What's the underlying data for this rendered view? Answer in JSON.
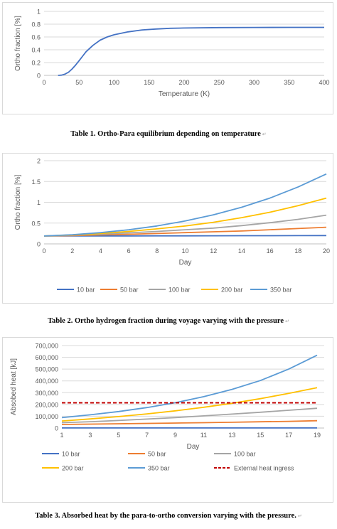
{
  "chart_data": [
    {
      "type": "line",
      "x": [
        20,
        25,
        30,
        35,
        40,
        45,
        50,
        55,
        60,
        70,
        80,
        90,
        100,
        120,
        140,
        160,
        180,
        200,
        250,
        300,
        350,
        400
      ],
      "series": [
        {
          "values": [
            0.0,
            0.003,
            0.02,
            0.05,
            0.1,
            0.16,
            0.23,
            0.3,
            0.37,
            0.47,
            0.55,
            0.6,
            0.635,
            0.68,
            0.71,
            0.725,
            0.735,
            0.74,
            0.747,
            0.749,
            0.75,
            0.75
          ],
          "color": "#4472C4"
        }
      ],
      "xlabel": "Temperature  (K)",
      "ylabel": "Ortho fraction [%]",
      "xlim": [
        0,
        400
      ],
      "ylim": [
        0,
        1
      ],
      "xticks": [
        "0",
        "50",
        "100",
        "150",
        "200",
        "250",
        "300",
        "350",
        "400"
      ],
      "yticks": [
        "0",
        "0.2",
        "0.4",
        "0.6",
        "0.8",
        "1"
      ],
      "grid": true
    },
    {
      "type": "line",
      "x": [
        0,
        2,
        4,
        6,
        8,
        10,
        12,
        14,
        16,
        18,
        20
      ],
      "series": [
        {
          "name": "10 bar",
          "color": "#4472C4",
          "values": [
            0.19,
            0.19,
            0.191,
            0.192,
            0.193,
            0.194,
            0.195,
            0.196,
            0.197,
            0.198,
            0.2
          ]
        },
        {
          "name": "50 bar",
          "color": "#ED7D31",
          "values": [
            0.19,
            0.2,
            0.215,
            0.23,
            0.25,
            0.27,
            0.29,
            0.31,
            0.34,
            0.37,
            0.4
          ]
        },
        {
          "name": "100 bar",
          "color": "#A5A5A5",
          "values": [
            0.19,
            0.21,
            0.235,
            0.265,
            0.3,
            0.34,
            0.38,
            0.44,
            0.51,
            0.59,
            0.69
          ]
        },
        {
          "name": "200 bar",
          "color": "#FFC000",
          "values": [
            0.19,
            0.215,
            0.25,
            0.3,
            0.36,
            0.43,
            0.52,
            0.63,
            0.76,
            0.92,
            1.1
          ]
        },
        {
          "name": "350 bar",
          "color": "#5B9BD5",
          "values": [
            0.19,
            0.22,
            0.27,
            0.34,
            0.43,
            0.55,
            0.7,
            0.88,
            1.1,
            1.37,
            1.68
          ]
        }
      ],
      "xlabel": "Day",
      "ylabel": "Ortho fraction [%]",
      "xlim": [
        0,
        20
      ],
      "ylim": [
        0,
        2
      ],
      "xticks": [
        "0",
        "2",
        "4",
        "6",
        "8",
        "10",
        "12",
        "14",
        "16",
        "18",
        "20"
      ],
      "yticks": [
        "0",
        "0.5",
        "1",
        "1.5",
        "2"
      ],
      "grid": true,
      "legend": "bottom"
    },
    {
      "type": "line",
      "x": [
        1,
        3,
        5,
        7,
        9,
        11,
        13,
        15,
        17,
        19
      ],
      "series": [
        {
          "name": "10 bar",
          "color": "#4472C4",
          "dash": false,
          "values": [
            1000,
            1000,
            1000,
            1000,
            1000,
            1000,
            1000,
            1000,
            1000,
            1000
          ]
        },
        {
          "name": "50 bar",
          "color": "#ED7D31",
          "dash": false,
          "values": [
            30000,
            33000,
            36000,
            39000,
            42000,
            45000,
            49000,
            53000,
            57000,
            62000
          ]
        },
        {
          "name": "100 bar",
          "color": "#A5A5A5",
          "dash": false,
          "values": [
            45000,
            54000,
            64000,
            76000,
            89000,
            103000,
            118000,
            134000,
            151000,
            168000
          ]
        },
        {
          "name": "200 bar",
          "color": "#FFC000",
          "dash": false,
          "values": [
            60000,
            77000,
            97000,
            120000,
            146000,
            176000,
            210000,
            249000,
            294000,
            343000
          ]
        },
        {
          "name": "350 bar",
          "color": "#5B9BD5",
          "dash": false,
          "values": [
            88000,
            112000,
            140000,
            174000,
            215000,
            266000,
            328000,
            403000,
            500000,
            618000
          ]
        },
        {
          "name": "External heat ingress",
          "color": "#C00000",
          "dash": true,
          "values": [
            214000,
            214000,
            214000,
            214000,
            214000,
            214000,
            214000,
            214000,
            214000,
            214000
          ]
        }
      ],
      "xlabel": "Day",
      "ylabel": "Absobed heat [kJ]",
      "xlim": [
        1,
        19.5
      ],
      "ylim": [
        0,
        700000
      ],
      "xticks": [
        "1",
        "3",
        "5",
        "7",
        "9",
        "11",
        "13",
        "15",
        "17",
        "19"
      ],
      "yticks": [
        "0",
        "100,000",
        "200,000",
        "300,000",
        "400,000",
        "500,000",
        "600,000",
        "700,000"
      ],
      "grid": true,
      "legend": "bottom"
    }
  ],
  "captions": {
    "table1": "Table 1. Ortho-Para equilibrium depending on temperature",
    "table2": "Table 2. Ortho hydrogen fraction during voyage varying with the pressure",
    "table3": "Table 3. Absorbed heat by the para-to-ortho conversion varying with the pressure.",
    "mark": "↵"
  }
}
